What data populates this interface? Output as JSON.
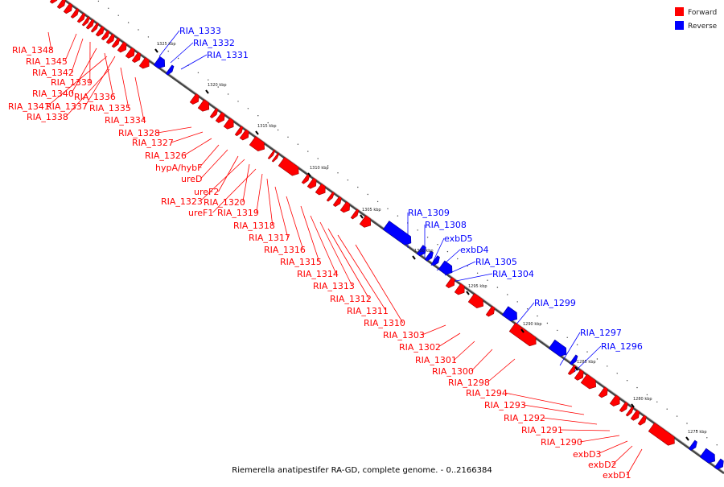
{
  "legend": {
    "forward_label": "Forward",
    "reverse_label": "Reverse",
    "forward_color": "#ff0000",
    "reverse_color": "#0000ff"
  },
  "caption": "Riemerella anatipestifer RA-GD, complete genome. - 0..2166384",
  "ticks": [
    "1325 kbp",
    "1320 kbp",
    "1315 kbp",
    "1310 kbp",
    "1305 kbp",
    "1300 kbp",
    "1295 kbp",
    "1290 kbp",
    "1285 kbp",
    "1280 kbp",
    "1275 kbp"
  ],
  "forward_genes": [
    "RIA_1348",
    "RIA_1345",
    "RIA_1342",
    "RIA_1339",
    "RIA_1340",
    "RIA_1341",
    "RIA_1337",
    "RIA_1336",
    "RIA_1335",
    "RIA_1338",
    "RIA_1334",
    "RIA_1328",
    "RIA_1327",
    "RIA_1326",
    "hypA/hybF",
    "ureD",
    "ureF2",
    "RIA_1323",
    "RIA_1320",
    "ureF1",
    "RIA_1319",
    "RIA_1318",
    "RIA_1317",
    "RIA_1316",
    "RIA_1315",
    "RIA_1314",
    "RIA_1313",
    "RIA_1312",
    "RIA_1311",
    "RIA_1310",
    "RIA_1303",
    "RIA_1302",
    "RIA_1301",
    "RIA_1300",
    "RIA_1298",
    "RIA_1294",
    "RIA_1293",
    "RIA_1292",
    "RIA_1291",
    "RIA_1290",
    "exbD3",
    "exbD2",
    "exbD1"
  ],
  "reverse_genes": [
    "RIA_1333",
    "RIA_1332",
    "RIA_1331",
    "RIA_1309",
    "RIA_1308",
    "exbD5",
    "exbD4",
    "RIA_1305",
    "RIA_1304",
    "RIA_1299",
    "RIA_1297",
    "RIA_1296"
  ]
}
